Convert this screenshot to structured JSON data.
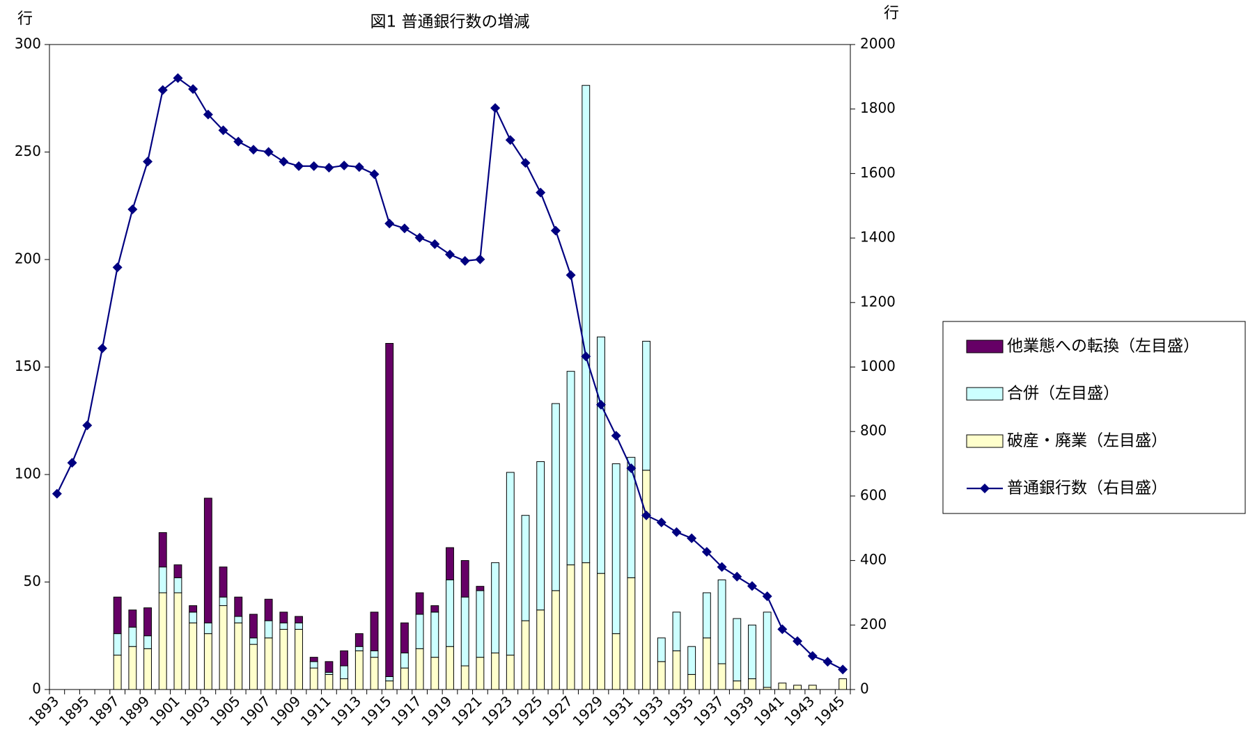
{
  "chart_data": {
    "type": "bar",
    "stacked": true,
    "title": "図1 普通銀行数の増減",
    "y_label": "行",
    "y2_label": "行",
    "categories": [
      "1893",
      null,
      "1895",
      null,
      "1897",
      null,
      "1899",
      null,
      "1901",
      null,
      "1903",
      null,
      "1905",
      null,
      "1907",
      null,
      "1909",
      null,
      "1911",
      null,
      "1913",
      null,
      "1915",
      null,
      "1917",
      null,
      "1919",
      null,
      "1921",
      null,
      "1923",
      null,
      "1925",
      null,
      "1927",
      null,
      "1929",
      null,
      "1931",
      null,
      "1933",
      null,
      "1935",
      null,
      "1937",
      null,
      "1939",
      null,
      "1941",
      null,
      "1943",
      null,
      "1945"
    ],
    "ylim": [
      0,
      300
    ],
    "yticks": [
      0,
      50,
      100,
      150,
      200,
      250,
      300
    ],
    "y2lim": [
      0,
      2000
    ],
    "y2ticks": [
      0,
      200,
      400,
      600,
      800,
      1000,
      1200,
      1400,
      1600,
      1800,
      2000
    ],
    "grid": false,
    "legend": "right",
    "series": [
      {
        "name": "他業態への転換（左目盛）",
        "type": "bar",
        "color": "#660066",
        "values": [
          null,
          null,
          null,
          null,
          17,
          8,
          13,
          16,
          6,
          3,
          58,
          14,
          9,
          11,
          10,
          5,
          3,
          2,
          5,
          7,
          6,
          18,
          155,
          14,
          10,
          3,
          15,
          17,
          2,
          0,
          0,
          0,
          0,
          0,
          0,
          0,
          0,
          0,
          0,
          0,
          0,
          0,
          0,
          0,
          0,
          0,
          0,
          0,
          0,
          0,
          0,
          0,
          0
        ]
      },
      {
        "name": "合併（左目盛）",
        "type": "bar",
        "color": "#ccffff",
        "values": [
          null,
          null,
          null,
          null,
          10,
          9,
          6,
          12,
          7,
          5,
          5,
          4,
          3,
          3,
          8,
          3,
          3,
          3,
          1,
          6,
          2,
          3,
          2,
          7,
          16,
          21,
          31,
          32,
          31,
          42,
          85,
          49,
          69,
          87,
          90,
          222,
          110,
          79,
          56,
          60,
          11,
          18,
          13,
          21,
          39,
          29,
          25,
          35,
          0,
          0,
          0,
          0,
          0
        ]
      },
      {
        "name": "破産・廃業（左目盛）",
        "type": "bar",
        "color": "#ffffcc",
        "values": [
          null,
          null,
          null,
          null,
          16,
          20,
          19,
          45,
          45,
          31,
          26,
          39,
          31,
          21,
          24,
          28,
          28,
          10,
          7,
          5,
          18,
          15,
          4,
          10,
          19,
          15,
          20,
          11,
          15,
          17,
          16,
          32,
          37,
          46,
          58,
          59,
          54,
          26,
          52,
          102,
          13,
          18,
          7,
          24,
          12,
          4,
          5,
          1,
          3,
          2,
          2,
          0,
          5
        ]
      },
      {
        "name": "普通銀行数（右目盛）",
        "type": "line",
        "axis": "y2",
        "color": "#000080",
        "values": [
          607,
          703,
          819,
          1058,
          1309,
          1489,
          1637,
          1859,
          1896,
          1862,
          1783,
          1734,
          1699,
          1674,
          1667,
          1637,
          1623,
          1623,
          1618,
          1625,
          1620,
          1598,
          1445,
          1430,
          1401,
          1381,
          1349,
          1329,
          1334,
          1803,
          1704,
          1633,
          1541,
          1423,
          1285,
          1033,
          883,
          787,
          686,
          540,
          518,
          488,
          469,
          427,
          380,
          350,
          321,
          289,
          187,
          150,
          104,
          86,
          62
        ]
      }
    ]
  }
}
